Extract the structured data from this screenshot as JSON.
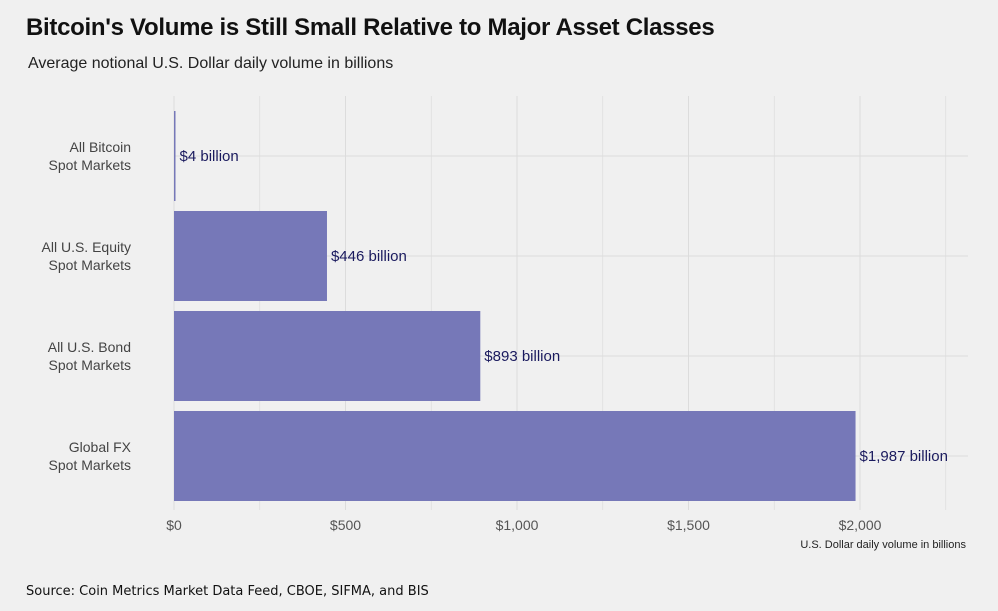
{
  "colors": {
    "bar": "#7678b8",
    "grid": "#dcdcdc",
    "background": "#f0f0f0"
  },
  "chart_data": {
    "type": "bar",
    "orientation": "horizontal",
    "title": "Bitcoin's Volume is Still Small Relative to Major Asset Classes",
    "subtitle": "Average notional U.S. Dollar daily volume in billions",
    "xlabel": "U.S. Dollar daily volume in billions",
    "ylabel": "",
    "categories": [
      [
        "All Bitcoin",
        "Spot Markets"
      ],
      [
        "All U.S. Equity",
        "Spot Markets"
      ],
      [
        "All U.S. Bond",
        "Spot Markets"
      ],
      [
        "Global FX",
        "Spot Markets"
      ]
    ],
    "values": [
      4,
      446,
      893,
      1987
    ],
    "data_labels": [
      "$4 billion",
      "$446 billion",
      "$893 billion",
      "$1,987 billion"
    ],
    "xlim": [
      0,
      2250
    ],
    "xticks": [
      0,
      500,
      1000,
      1500,
      2000
    ],
    "xtick_labels": [
      "$0",
      "$500",
      "$1,000",
      "$1,500",
      "$2,000"
    ],
    "grid": true,
    "legend": "none"
  },
  "source": "Source: Coin Metrics Market Data Feed, CBOE, SIFMA, and BIS"
}
